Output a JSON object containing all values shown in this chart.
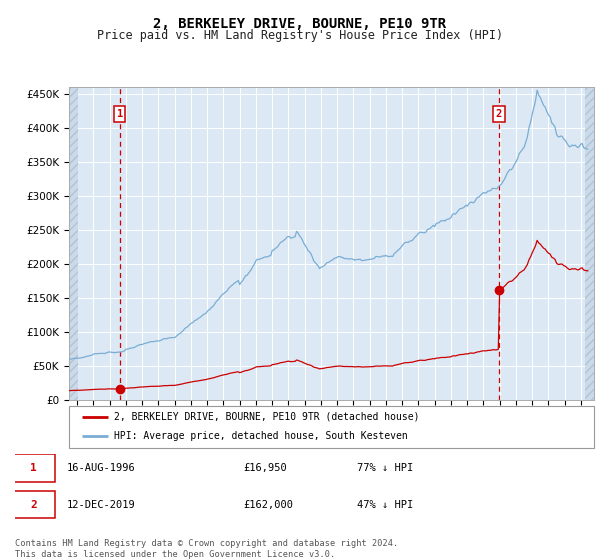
{
  "title": "2, BERKELEY DRIVE, BOURNE, PE10 9TR",
  "subtitle": "Price paid vs. HM Land Registry's House Price Index (HPI)",
  "title_fontsize": 10,
  "subtitle_fontsize": 8.5,
  "ylim": [
    0,
    460000
  ],
  "yticks": [
    0,
    50000,
    100000,
    150000,
    200000,
    250000,
    300000,
    350000,
    400000,
    450000
  ],
  "xlim_start": 1993.5,
  "xlim_end": 2025.8,
  "background_color": "#dce9f5",
  "grid_color": "#ffffff",
  "sale1_date": 1996.62,
  "sale1_price": 16950,
  "sale2_date": 2019.95,
  "sale2_price": 162000,
  "legend_line1": "2, BERKELEY DRIVE, BOURNE, PE10 9TR (detached house)",
  "legend_line2": "HPI: Average price, detached house, South Kesteven",
  "table_row1": [
    "1",
    "16-AUG-1996",
    "£16,950",
    "77% ↓ HPI"
  ],
  "table_row2": [
    "2",
    "12-DEC-2019",
    "£162,000",
    "47% ↓ HPI"
  ],
  "footer": "Contains HM Land Registry data © Crown copyright and database right 2024.\nThis data is licensed under the Open Government Licence v3.0.",
  "red_line_color": "#cc0000",
  "blue_line_color": "#7aadd4",
  "sale_marker_color": "#cc0000",
  "vline_color": "#cc0000"
}
